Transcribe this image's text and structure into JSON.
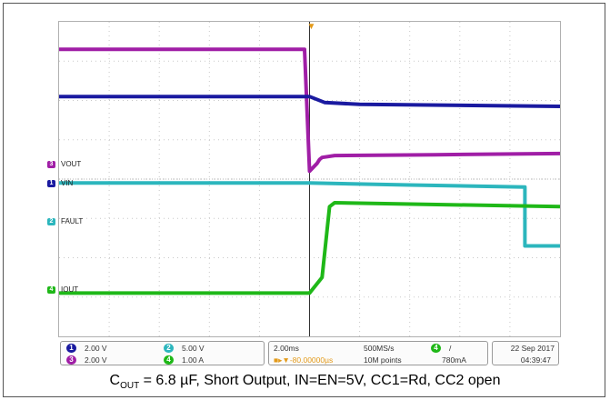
{
  "chart_data": {
    "type": "line",
    "title": "",
    "xlabel": "",
    "ylabel": "",
    "grid": true,
    "divisions": {
      "x": 10,
      "y": 8
    },
    "xlim": [
      -10,
      10
    ],
    "ylim": [
      -4,
      4
    ],
    "series": [
      {
        "name": "VOUT",
        "color": "#a01ea6",
        "x": [
          -10,
          -0.2,
          0,
          0.3,
          0.4,
          0.5,
          1,
          5,
          10
        ],
        "y": [
          3.3,
          3.3,
          0.2,
          0.4,
          0.5,
          0.55,
          0.6,
          0.62,
          0.65
        ]
      },
      {
        "name": "VIN",
        "color": "#1a1aa0",
        "x": [
          -10,
          -0.2,
          0,
          0.6,
          2,
          10
        ],
        "y": [
          2.1,
          2.1,
          2.1,
          1.95,
          1.9,
          1.85
        ]
      },
      {
        "name": "FAULT",
        "color": "#2cb6bd",
        "x": [
          -10,
          0,
          4,
          8.6,
          8.6,
          10
        ],
        "y": [
          -0.1,
          -0.1,
          -0.15,
          -0.2,
          -1.7,
          -1.7
        ]
      },
      {
        "name": "IOUT",
        "color": "#1fb818",
        "x": [
          -10,
          -0.1,
          0,
          0.5,
          0.8,
          1,
          10
        ],
        "y": [
          -2.9,
          -2.9,
          -2.9,
          -2.5,
          -0.7,
          -0.6,
          -0.7
        ]
      }
    ],
    "channel_markers": [
      {
        "id": "3",
        "label": "VOUT",
        "color": "#a01ea6",
        "y": 0.35
      },
      {
        "id": "1",
        "label": "VIN",
        "color": "#1a1aa0",
        "y": -0.15
      },
      {
        "id": "2",
        "label": "FAULT",
        "color": "#2cb6bd",
        "y": -1.1
      },
      {
        "id": "4",
        "label": "IOUT",
        "color": "#1fb818",
        "y": -2.85
      }
    ],
    "trigger_time": 0
  },
  "status": {
    "ch1": {
      "id": "1",
      "scale": "2.00 V",
      "color": "#1a1aa0"
    },
    "ch2": {
      "id": "2",
      "scale": "5.00 V",
      "color": "#2cb6bd"
    },
    "ch3": {
      "id": "3",
      "scale": "2.00 V",
      "color": "#a01ea6"
    },
    "ch4": {
      "id": "4",
      "scale": "1.00 A",
      "color": "#1fb818"
    },
    "timebase": "2.00ms",
    "trigger_offset": "-80.00000µs",
    "sample_rate": "500MS/s",
    "record_length": "10M points",
    "trigger_channel": "4",
    "trigger_slope": "/",
    "trigger_level": "780mA",
    "date": "22 Sep 2017",
    "time": "04:39:47"
  },
  "caption": {
    "c_symbol": "C",
    "c_sub": "OUT",
    "text": " = 6.8 µF, Short Output, IN=EN=5V, CC1=Rd, CC2 open"
  }
}
